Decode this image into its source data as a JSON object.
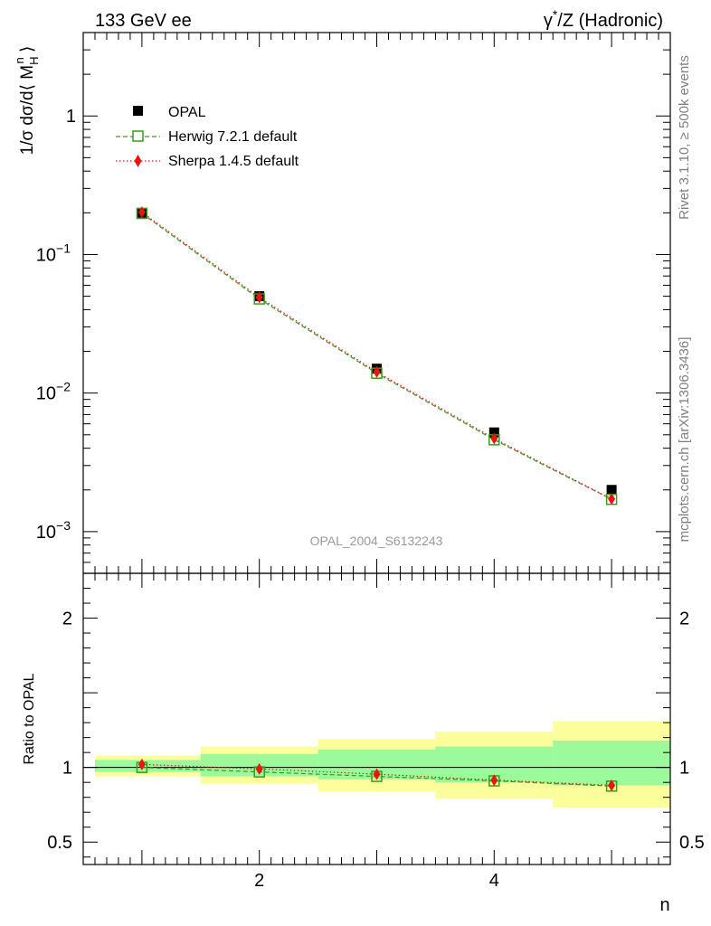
{
  "header": {
    "left_title": "133 GeV ee",
    "right_title_base": "γ",
    "right_title_sup": "*",
    "right_title_rest": "/Z (Hadronic)"
  },
  "side_labels": {
    "rivet": "Rivet 3.1.10, ≥ 500k events",
    "source": "mcplots.cern.ch [arXiv:1306.3436]"
  },
  "watermark": "OPAL_2004_S6132243",
  "chart_data": [
    {
      "type": "scatter",
      "panel": "main",
      "ylabel": "1/σ dσ/d⟨ M_H^n ⟩",
      "ylabel_parts": {
        "pre": "1/σ dσ/d⟨ M",
        "sub": "H",
        "sup": "n",
        "post": " ⟩"
      },
      "yscale": "log",
      "ylim": [
        0.0005,
        4.0
      ],
      "xlim": [
        0.5,
        5.5
      ],
      "x": [
        1,
        2,
        3,
        4,
        5
      ],
      "y_ticks": [
        {
          "value": 0.001,
          "base": "10",
          "exp": "−3"
        },
        {
          "value": 0.01,
          "base": "10",
          "exp": "−2"
        },
        {
          "value": 0.1,
          "base": "10",
          "exp": "−1"
        },
        {
          "value": 1,
          "base": "1",
          "exp": ""
        }
      ],
      "legend_position": "top-left",
      "series": [
        {
          "name": "OPAL",
          "color": "#000000",
          "marker": "square-filled",
          "values": [
            0.2,
            0.05,
            0.015,
            0.0052,
            0.002
          ]
        },
        {
          "name": "Herwig 7.2.1 default",
          "color": "#3a9b1e",
          "marker": "square-open",
          "line": "dashed",
          "values": [
            0.198,
            0.0478,
            0.0139,
            0.0046,
            0.00171
          ]
        },
        {
          "name": "Sherpa 1.4.5 default",
          "color": "#e8160c",
          "marker": "diamond",
          "line": "dotted",
          "values": [
            0.202,
            0.049,
            0.0142,
            0.0047,
            0.00172
          ]
        }
      ]
    },
    {
      "type": "scatter",
      "panel": "ratio",
      "ylabel": "Ratio to OPAL",
      "xlabel": "n",
      "ylim": [
        0.35,
        2.3
      ],
      "xlim": [
        0.5,
        5.5
      ],
      "x_ticks": [
        "2",
        "4"
      ],
      "x_tick_values": [
        2,
        4
      ],
      "y_ticks": [
        {
          "value": 0.5,
          "label": "0.5"
        },
        {
          "value": 1,
          "label": "1"
        },
        {
          "value": 2,
          "label": "2"
        }
      ],
      "bands": {
        "bin_edges": [
          0.6,
          1.5,
          2.5,
          3.5,
          4.5,
          5.5
        ],
        "outer_color": "#fcfd9b",
        "inner_color": "#9bfb9b",
        "outer": [
          [
            0.94,
            1.08
          ],
          [
            0.89,
            1.14
          ],
          [
            0.84,
            1.19
          ],
          [
            0.79,
            1.24
          ],
          [
            0.73,
            1.31
          ]
        ],
        "inner": [
          [
            0.97,
            1.05
          ],
          [
            0.94,
            1.09
          ],
          [
            0.92,
            1.12
          ],
          [
            0.9,
            1.14
          ],
          [
            0.88,
            1.18
          ]
        ]
      },
      "series": [
        {
          "name": "Herwig 7.2.1 default",
          "color": "#3a9b1e",
          "marker": "square-open",
          "line": "dashed",
          "values": [
            1.0,
            0.97,
            0.94,
            0.91,
            0.875
          ]
        },
        {
          "name": "Sherpa 1.4.5 default",
          "color": "#e8160c",
          "marker": "diamond",
          "line": "dotted",
          "values": [
            1.02,
            0.99,
            0.955,
            0.915,
            0.88
          ]
        }
      ]
    }
  ]
}
